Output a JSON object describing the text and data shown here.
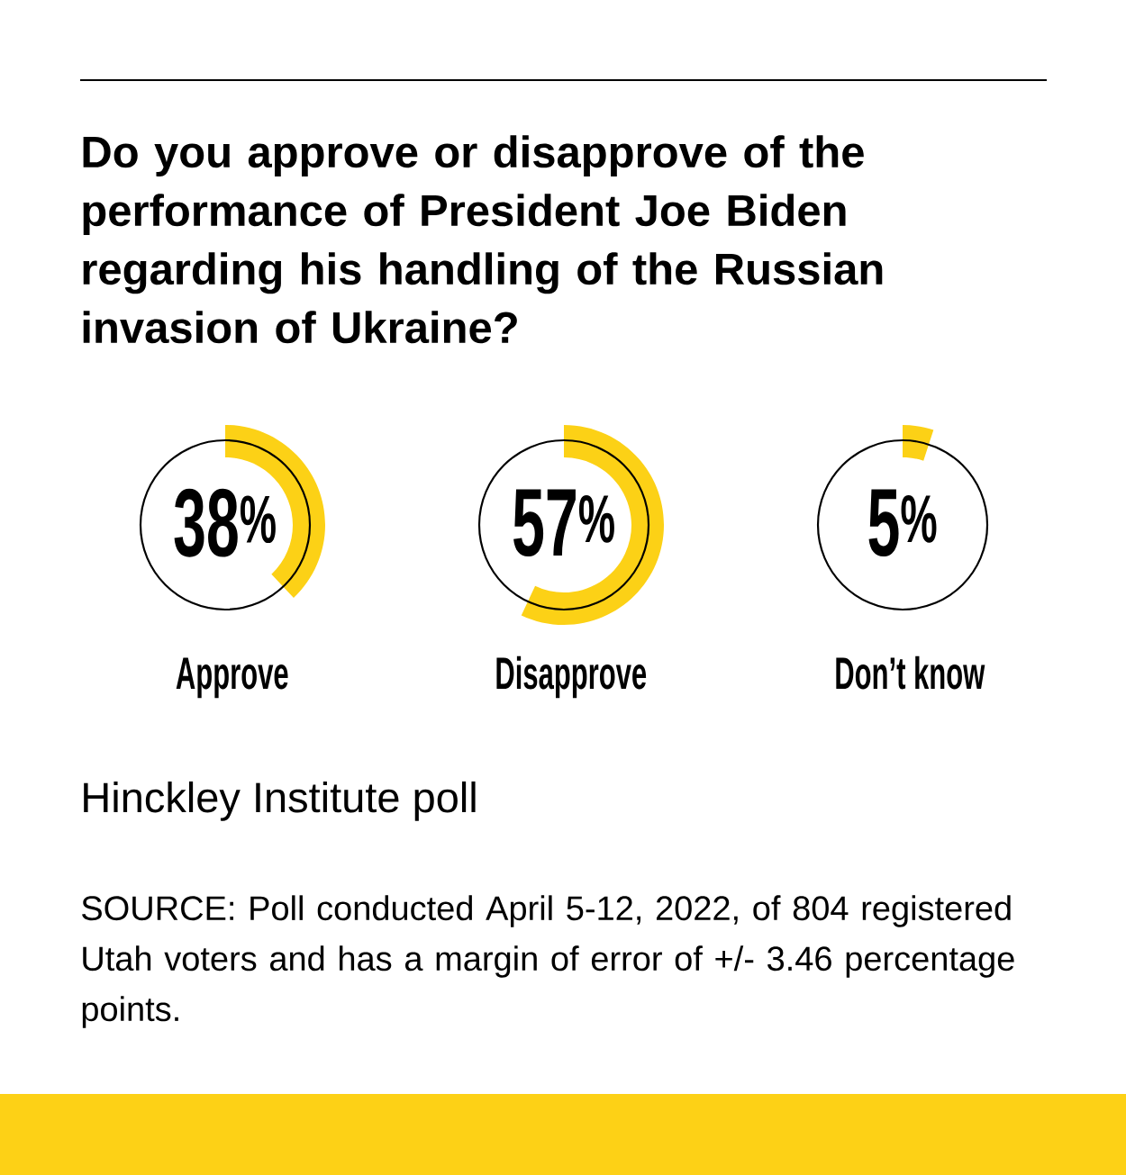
{
  "chart_data": [
    {
      "type": "other",
      "title": "Do you approve or disapprove of the performance of President Joe Biden regarding his handling of the Russian invasion of Ukraine?",
      "categories": [
        "Approve"
      ],
      "values": [
        38
      ],
      "colors": [
        "#fcd116"
      ],
      "value_labels": [
        "38$^{%}$"
      ],
      "annotations": [
        "Hinckley Institute poll",
        "SOURCE: Poll conducted April 5-12, 2022, of 804 registered Utah voters and has a margin of error of +/- 3.46 percentage points."
      ]
    },
    {
      "type": "other",
      "categories": [
        "Disapprove"
      ],
      "values": [
        57
      ],
      "colors": [
        "#fcd116"
      ],
      "value_labels": [
        "57$^{%}$"
      ]
    },
    {
      "type": "other",
      "categories": [
        "Don’t know"
      ],
      "values": [
        5
      ],
      "colors": [
        "#fcd116"
      ],
      "value_labels": [
        "5$^{%}$"
      ]
    }
  ]
}
